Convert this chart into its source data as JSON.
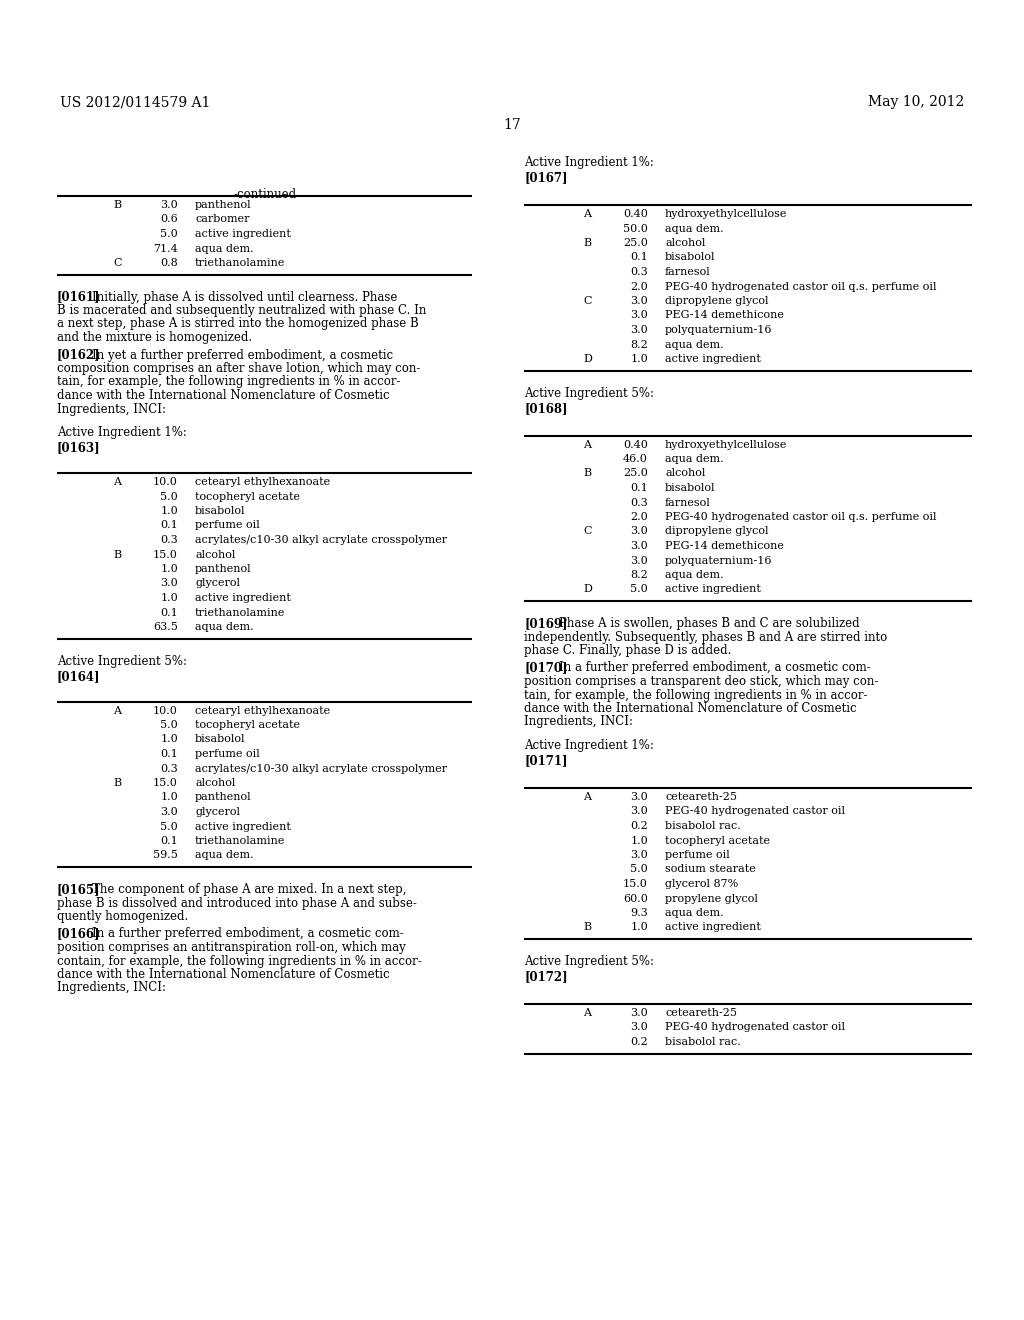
{
  "header_left": "US 2012/0114579 A1",
  "header_right": "May 10, 2012",
  "page_number": "17",
  "background_color": "#ffffff",
  "text_color": "#000000",
  "left_col": {
    "continued_table": {
      "title": "-continued",
      "rows": [
        [
          "B",
          "3.0",
          "panthenol"
        ],
        [
          "",
          "0.6",
          "carbomer"
        ],
        [
          "",
          "5.0",
          "active ingredient"
        ],
        [
          "",
          "71.4",
          "aqua dem."
        ],
        [
          "C",
          "0.8",
          "triethanolamine"
        ]
      ]
    },
    "para_0161_lines": [
      "[0161]    Initially, phase A is dissolved until clearness. Phase",
      "B is macerated and subsequently neutralized with phase C. In",
      "a next step, phase A is stirred into the homogenized phase B",
      "and the mixture is homogenized."
    ],
    "para_0162_lines": [
      "[0162]    In yet a further preferred embodiment, a cosmetic",
      "composition comprises an after shave lotion, which may con-",
      "tain, for example, the following ingredients in % in accor-",
      "dance with the International Nomenclature of Cosmetic",
      "Ingredients, INCI:"
    ],
    "label_0163_pre": "Active Ingredient 1%:",
    "label_0163": "[0163]",
    "table_0163": {
      "rows": [
        [
          "A",
          "10.0",
          "cetearyl ethylhexanoate"
        ],
        [
          "",
          "5.0",
          "tocopheryl acetate"
        ],
        [
          "",
          "1.0",
          "bisabolol"
        ],
        [
          "",
          "0.1",
          "perfume oil"
        ],
        [
          "",
          "0.3",
          "acrylates/c10-30 alkyl acrylate crosspolymer"
        ],
        [
          "B",
          "15.0",
          "alcohol"
        ],
        [
          "",
          "1.0",
          "panthenol"
        ],
        [
          "",
          "3.0",
          "glycerol"
        ],
        [
          "",
          "1.0",
          "active ingredient"
        ],
        [
          "",
          "0.1",
          "triethanolamine"
        ],
        [
          "",
          "63.5",
          "aqua dem."
        ]
      ]
    },
    "label_0164_pre": "Active Ingredient 5%:",
    "label_0164": "[0164]",
    "table_0164": {
      "rows": [
        [
          "A",
          "10.0",
          "cetearyl ethylhexanoate"
        ],
        [
          "",
          "5.0",
          "tocopheryl acetate"
        ],
        [
          "",
          "1.0",
          "bisabolol"
        ],
        [
          "",
          "0.1",
          "perfume oil"
        ],
        [
          "",
          "0.3",
          "acrylates/c10-30 alkyl acrylate crosspolymer"
        ],
        [
          "B",
          "15.0",
          "alcohol"
        ],
        [
          "",
          "1.0",
          "panthenol"
        ],
        [
          "",
          "3.0",
          "glycerol"
        ],
        [
          "",
          "5.0",
          "active ingredient"
        ],
        [
          "",
          "0.1",
          "triethanolamine"
        ],
        [
          "",
          "59.5",
          "aqua dem."
        ]
      ]
    },
    "para_0165_lines": [
      "[0165]    The component of phase A are mixed. In a next step,",
      "phase B is dissolved and introduced into phase A and subse-",
      "quently homogenized."
    ],
    "para_0166_lines": [
      "[0166]    In a further preferred embodiment, a cosmetic com-",
      "position comprises an antitranspiration roll-on, which may",
      "contain, for example, the following ingredients in % in accor-",
      "dance with the International Nomenclature of Cosmetic",
      "Ingredients, INCI:"
    ]
  },
  "right_col": {
    "label_167_pre": "Active Ingredient 1%:",
    "label_167": "[0167]",
    "table_0167": {
      "rows": [
        [
          "A",
          "0.40",
          "hydroxyethylcellulose"
        ],
        [
          "",
          "50.0",
          "aqua dem."
        ],
        [
          "B",
          "25.0",
          "alcohol"
        ],
        [
          "",
          "0.1",
          "bisabolol"
        ],
        [
          "",
          "0.3",
          "farnesol"
        ],
        [
          "",
          "2.0",
          "PEG-40 hydrogenated castor oil q.s. perfume oil"
        ],
        [
          "C",
          "3.0",
          "dipropylene glycol"
        ],
        [
          "",
          "3.0",
          "PEG-14 demethicone"
        ],
        [
          "",
          "3.0",
          "polyquaternium-16"
        ],
        [
          "",
          "8.2",
          "aqua dem."
        ],
        [
          "D",
          "1.0",
          "active ingredient"
        ]
      ]
    },
    "label_168_pre": "Active Ingredient 5%:",
    "label_168": "[0168]",
    "table_0168": {
      "rows": [
        [
          "A",
          "0.40",
          "hydroxyethylcellulose"
        ],
        [
          "",
          "46.0",
          "aqua dem."
        ],
        [
          "B",
          "25.0",
          "alcohol"
        ],
        [
          "",
          "0.1",
          "bisabolol"
        ],
        [
          "",
          "0.3",
          "farnesol"
        ],
        [
          "",
          "2.0",
          "PEG-40 hydrogenated castor oil q.s. perfume oil"
        ],
        [
          "C",
          "3.0",
          "dipropylene glycol"
        ],
        [
          "",
          "3.0",
          "PEG-14 demethicone"
        ],
        [
          "",
          "3.0",
          "polyquaternium-16"
        ],
        [
          "",
          "8.2",
          "aqua dem."
        ],
        [
          "D",
          "5.0",
          "active ingredient"
        ]
      ]
    },
    "para_0169_lines": [
      "[0169]    Phase A is swollen, phases B and C are solubilized",
      "independently. Subsequently, phases B and A are stirred into",
      "phase C. Finally, phase D is added."
    ],
    "para_0170_lines": [
      "[0170]    In a further preferred embodiment, a cosmetic com-",
      "position comprises a transparent deo stick, which may con-",
      "tain, for example, the following ingredients in % in accor-",
      "dance with the International Nomenclature of Cosmetic",
      "Ingredients, INCI:"
    ],
    "label_171_pre": "Active Ingredient 1%:",
    "label_171": "[0171]",
    "table_0171": {
      "rows": [
        [
          "A",
          "3.0",
          "ceteareth-25"
        ],
        [
          "",
          "3.0",
          "PEG-40 hydrogenated castor oil"
        ],
        [
          "",
          "0.2",
          "bisabolol rac."
        ],
        [
          "",
          "1.0",
          "tocopheryl acetate"
        ],
        [
          "",
          "3.0",
          "perfume oil"
        ],
        [
          "",
          "5.0",
          "sodium stearate"
        ],
        [
          "",
          "15.0",
          "glycerol 87%"
        ],
        [
          "",
          "60.0",
          "propylene glycol"
        ],
        [
          "",
          "9.3",
          "aqua dem."
        ],
        [
          "B",
          "1.0",
          "active ingredient"
        ]
      ]
    },
    "label_172_pre": "Active Ingredient 5%:",
    "label_172": "[0172]",
    "table_0172": {
      "rows": [
        [
          "A",
          "3.0",
          "ceteareth-25"
        ],
        [
          "",
          "3.0",
          "PEG-40 hydrogenated castor oil"
        ],
        [
          "",
          "0.2",
          "bisabolol rac."
        ]
      ]
    }
  }
}
